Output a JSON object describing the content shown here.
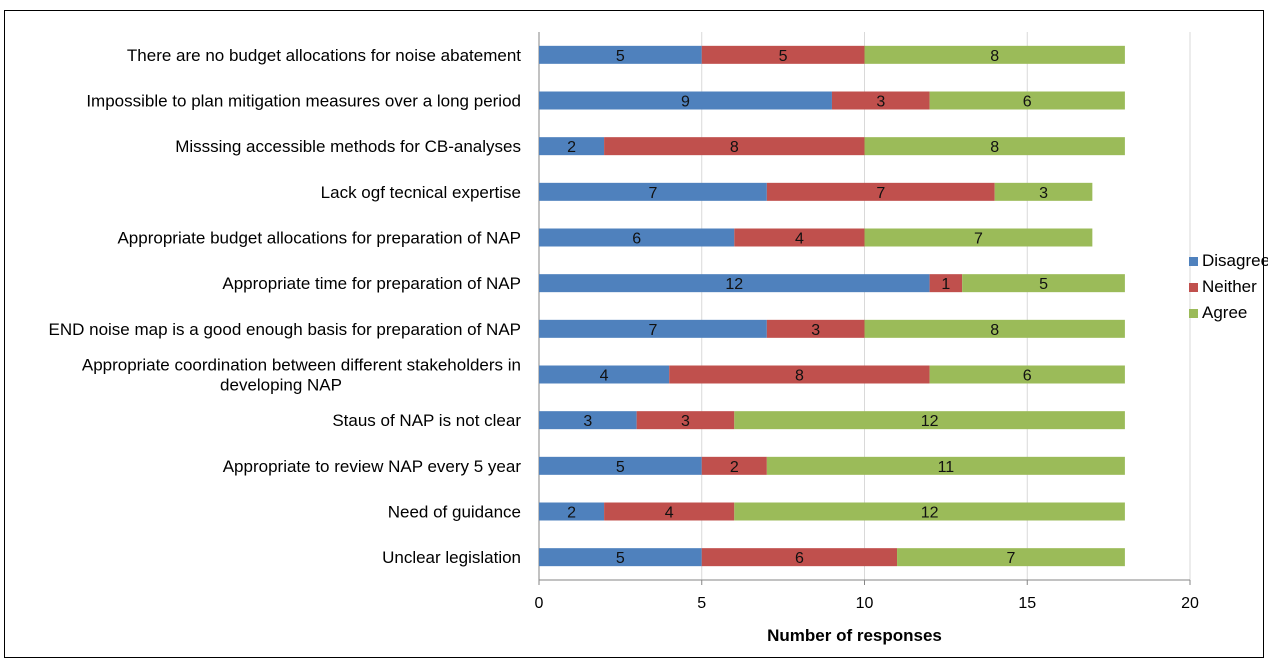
{
  "chart_data": {
    "type": "bar",
    "orientation": "horizontal",
    "stacked": true,
    "categories": [
      "There are no budget allocations for noise abatement",
      "Impossible to plan mitigation measures over a long period",
      "Misssing accessible methods for CB-analyses",
      "Lack ogf tecnical expertise",
      "Appropriate budget allocations for preparation of NAP",
      "Appropriate time for preparation of NAP",
      "END noise map is a good enough basis for preparation of NAP",
      "Appropriate coordination between different stakeholders in developing NAP",
      "Staus of NAP is not clear",
      "Appropriate to review NAP every 5 year",
      "Need of guidance",
      "Unclear legislation"
    ],
    "series": [
      {
        "name": "Disagree",
        "color": "#4f81bd",
        "values": [
          5,
          9,
          2,
          7,
          6,
          12,
          7,
          4,
          3,
          5,
          2,
          5
        ]
      },
      {
        "name": "Neither",
        "color": "#c0504d",
        "values": [
          5,
          3,
          8,
          7,
          4,
          1,
          3,
          8,
          3,
          2,
          4,
          6
        ]
      },
      {
        "name": "Agree",
        "color": "#9bbb59",
        "values": [
          8,
          6,
          8,
          3,
          7,
          5,
          8,
          6,
          12,
          11,
          12,
          7
        ]
      }
    ],
    "xlabel": "Number of responses",
    "ylabel": "",
    "xlim": [
      0,
      20
    ],
    "xticks": [
      "0",
      "5",
      "10",
      "15",
      "20"
    ],
    "grid": "vertical",
    "legend_position": "right"
  }
}
